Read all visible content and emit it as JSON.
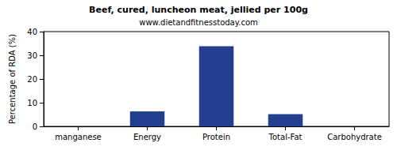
{
  "chart_data": {
    "type": "bar",
    "title": "Beef, cured, luncheon meat, jellied per 100g",
    "subtitle": "www.dietandfitnesstoday.com",
    "y_label": "Percentage of RDA (%)",
    "categories": [
      "manganese",
      "Energy",
      "Protein",
      "Total-Fat",
      "Carbohydrate"
    ],
    "values": [
      0,
      6.3,
      33.8,
      5.2,
      0
    ],
    "color": "#233f8f",
    "ylim": [
      0,
      40
    ],
    "yticks": [
      0,
      10,
      20,
      30,
      40
    ],
    "grid": false
  }
}
